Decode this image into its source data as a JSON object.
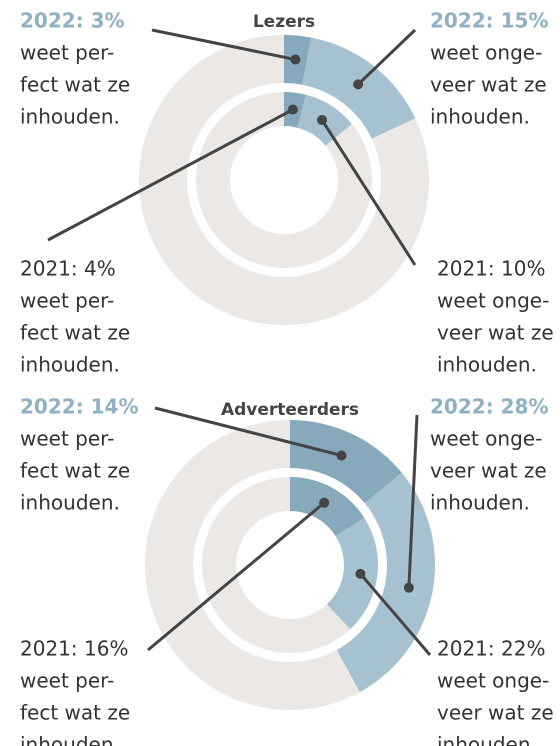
{
  "chart_data": [
    {
      "type": "donut",
      "title": "Lezers",
      "categories": [
        [
          "weet per-",
          "fect wat ze",
          "inhouden."
        ],
        [
          "weet onge-",
          "veer wat ze",
          "inhouden."
        ]
      ],
      "colors": [
        "#86a9bc",
        "#a6c2d1"
      ],
      "series": [
        {
          "values": [
            3,
            15
          ],
          "value_labels": [
            "2022: 3%",
            "2022: 15%"
          ]
        },
        {
          "values": [
            4,
            10
          ],
          "value_labels": [
            "2021: 4%",
            "2021: 10%"
          ]
        }
      ]
    },
    {
      "type": "donut",
      "title": "Adverteerders",
      "categories": [
        [
          "weet per-",
          "fect wat ze",
          "inhouden."
        ],
        [
          "weet onge-",
          "veer wat ze",
          "inhouden."
        ]
      ],
      "colors": [
        "#86a9bc",
        "#a6c2d1"
      ],
      "series": [
        {
          "values": [
            14,
            28
          ],
          "value_labels": [
            "2022: 14%",
            "2022: 28%"
          ]
        },
        {
          "values": [
            16,
            22
          ],
          "value_labels": [
            "2021: 16%",
            "2021: 22%"
          ]
        }
      ]
    }
  ]
}
